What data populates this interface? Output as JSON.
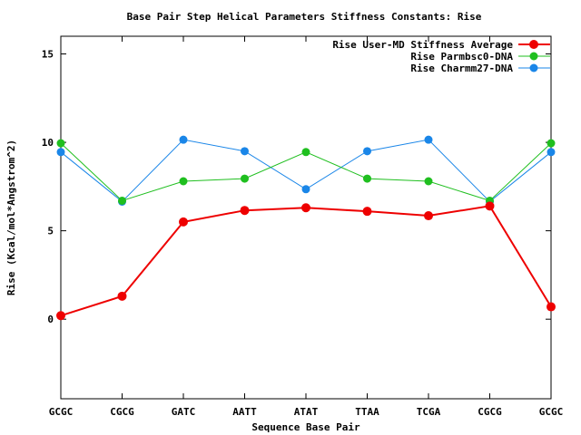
{
  "chart_data": {
    "type": "line",
    "title": "Base Pair Step Helical Parameters Stiffness Constants: Rise",
    "xlabel": "Sequence Base Pair",
    "ylabel": "Rise (Kcal/mol*Angstrom^2)",
    "categories": [
      "GCGC",
      "CGCG",
      "GATC",
      "AATT",
      "ATAT",
      "TTAA",
      "TCGA",
      "CGCG",
      "GCGC"
    ],
    "ylim": [
      -4.5,
      16
    ],
    "yticks": [
      0,
      5,
      10,
      15
    ],
    "grid": false,
    "legend_position": "top-right",
    "series": [
      {
        "name": "Rise User-MD Stiffness Average",
        "color": "#ee0000",
        "values": [
          0.2,
          1.3,
          5.5,
          6.15,
          6.3,
          6.1,
          5.85,
          6.4,
          0.7
        ]
      },
      {
        "name": "Rise Parmbsc0-DNA",
        "color": "#1fbf1f",
        "values": [
          9.95,
          6.7,
          7.8,
          7.95,
          9.45,
          7.95,
          7.8,
          6.7,
          9.95
        ]
      },
      {
        "name": "Rise Charmm27-DNA",
        "color": "#1a86e8",
        "values": [
          9.45,
          6.65,
          10.15,
          9.5,
          7.35,
          9.5,
          10.15,
          6.65,
          9.45
        ]
      }
    ]
  }
}
